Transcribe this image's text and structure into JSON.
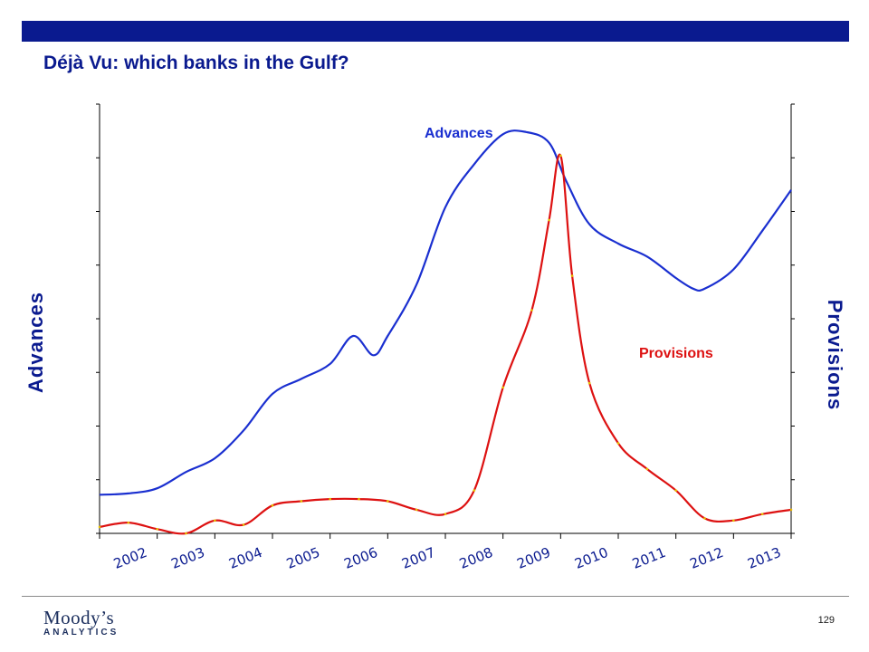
{
  "slide": {
    "title": "Déjà Vu:  which banks in the Gulf?",
    "page_number": "129",
    "brand_color": "#0a1a8f"
  },
  "logo": {
    "name": "Moody's",
    "wordmark": "Moody’s",
    "subtitle": "ANALYTICS"
  },
  "chart_data": {
    "type": "line",
    "xlabel": "",
    "ylabel_left": "Advances",
    "ylabel_right": "Provisions",
    "categories": [
      "2002",
      "2003",
      "2004",
      "2005",
      "2006",
      "2007",
      "2008",
      "2009",
      "2010",
      "2011",
      "2012",
      "2013"
    ],
    "x_range": [
      2001.5,
      2013.5
    ],
    "y_left_range": [
      0,
      100
    ],
    "y_right_range": [
      0,
      100
    ],
    "grid": false,
    "series": [
      {
        "name": "Advances",
        "axis": "left",
        "color": "#1a2fd0",
        "x": [
          2001.5,
          2002.0,
          2002.5,
          2003.0,
          2003.5,
          2004.0,
          2004.5,
          2005.0,
          2005.5,
          2005.9,
          2006.25,
          2006.5,
          2007.0,
          2007.5,
          2008.0,
          2008.5,
          2008.9,
          2009.3,
          2009.6,
          2010.0,
          2010.5,
          2011.0,
          2011.5,
          2011.8,
          2012.0,
          2012.5,
          2013.0,
          2013.5
        ],
        "values": [
          9,
          9.3,
          10.5,
          14.3,
          17.5,
          24,
          32.5,
          36,
          39.5,
          46,
          41.5,
          46,
          58,
          76,
          86,
          93,
          93.5,
          91,
          82,
          72,
          67.5,
          64.5,
          59.5,
          57,
          57,
          61.5,
          70.5,
          80
        ]
      },
      {
        "name": "Provisions",
        "axis": "right",
        "color": "#dd1111",
        "x": [
          2001.5,
          2002.0,
          2002.5,
          2003.0,
          2003.5,
          2004.0,
          2004.5,
          2005.0,
          2005.5,
          2006.0,
          2006.5,
          2007.0,
          2007.5,
          2008.0,
          2008.5,
          2009.0,
          2009.3,
          2009.5,
          2009.7,
          2010.0,
          2010.5,
          2011.0,
          2011.5,
          2012.0,
          2012.5,
          2013.0,
          2013.5
        ],
        "values": [
          1.5,
          2.5,
          1,
          0,
          3,
          2,
          6.5,
          7.5,
          8,
          8,
          7.5,
          5.5,
          4.5,
          10,
          34,
          52,
          73,
          88,
          60,
          35,
          21,
          15,
          10,
          3.5,
          3,
          4.5,
          5.5
        ]
      }
    ],
    "annotations": [
      {
        "text": "Advances",
        "color": "#1a2fd0"
      },
      {
        "text": "Provisions",
        "color": "#dd1111"
      }
    ]
  }
}
